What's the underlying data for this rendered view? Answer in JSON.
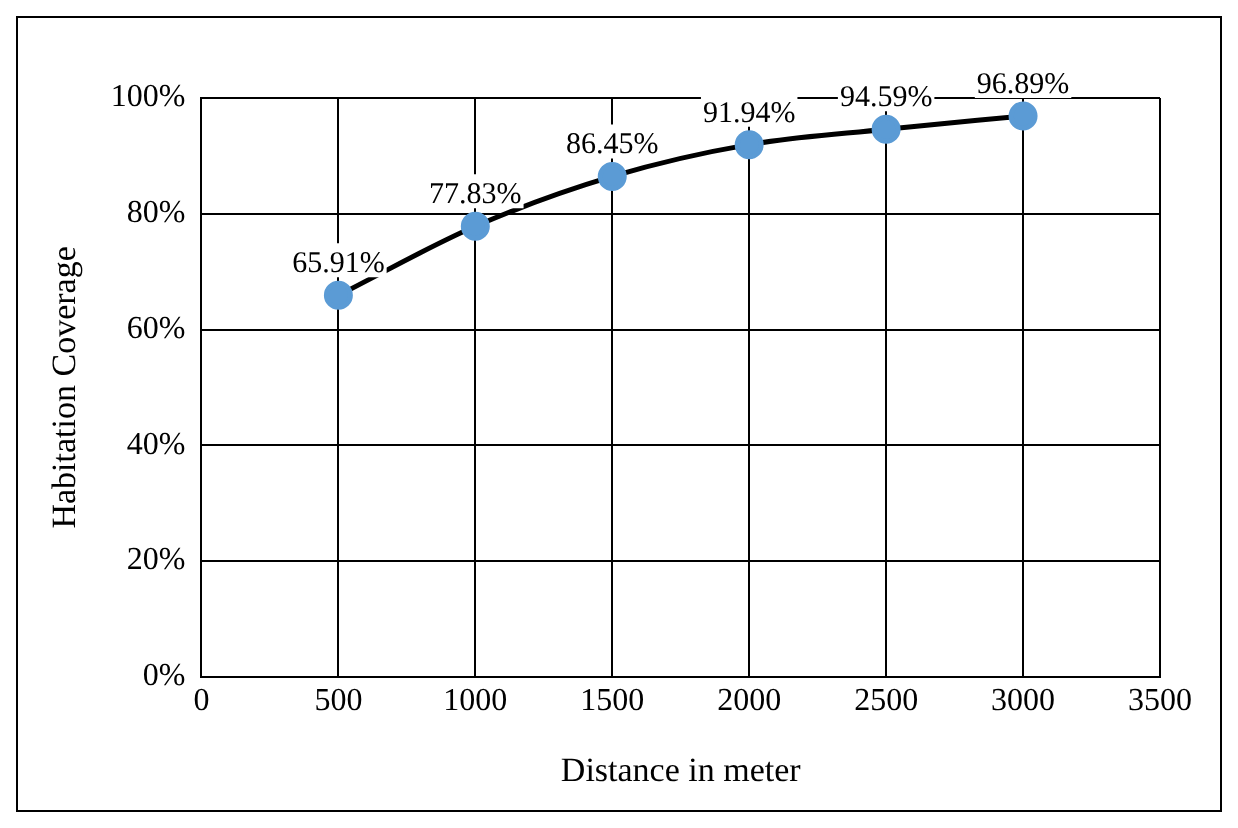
{
  "chart_data": {
    "type": "line",
    "xlabel": "Distance in meter",
    "ylabel": "Habitation Coverage",
    "x": [
      500,
      1000,
      1500,
      2000,
      2500,
      3000
    ],
    "series": [
      {
        "color": "#000000",
        "values": [
          65.91,
          77.83,
          86.45,
          91.94,
          94.59,
          96.89
        ],
        "value_labels": [
          "65.91%",
          "77.83%",
          "86.45%",
          "91.94%",
          "94.59%",
          "96.89%"
        ]
      }
    ],
    "xlim": [
      0,
      3500
    ],
    "xticks": [
      0,
      500,
      1000,
      1500,
      2000,
      2500,
      3000,
      3500
    ],
    "ylim": [
      0,
      100
    ],
    "yticks": [
      {
        "value": 0,
        "label": "0%"
      },
      {
        "value": 20,
        "label": "20%"
      },
      {
        "value": 40,
        "label": "40%"
      },
      {
        "value": 60,
        "label": "60%"
      },
      {
        "value": 80,
        "label": "80%"
      },
      {
        "value": 100,
        "label": "100%"
      }
    ],
    "grid": true,
    "legend": false,
    "marker": "circle",
    "line_style": "solid"
  }
}
